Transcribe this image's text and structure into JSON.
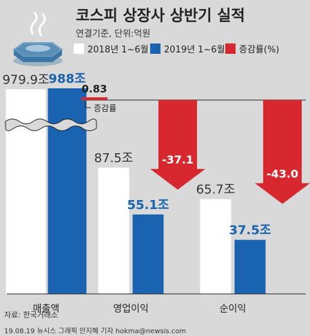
{
  "header": {
    "title": "코스피 상장사 상반기 실적",
    "subtitle": "연결기준, 단위:억원"
  },
  "legend": {
    "items": [
      {
        "label": "2018년 1~6월",
        "color": "#ffffff"
      },
      {
        "label": "2019년 1~6월",
        "color": "#1a63b0"
      },
      {
        "label": "증감률(%)",
        "color": "#d7282f"
      }
    ]
  },
  "colors": {
    "background": "#d9d9d9",
    "bar_2018": "#ffffff",
    "bar_2019": "#1a63b0",
    "change": "#d7282f",
    "label_2019": "#1a63b0",
    "label_change": "#ffffff"
  },
  "chart_data": {
    "type": "bar",
    "categories": [
      "매출액",
      "영업이익",
      "순이익"
    ],
    "series": [
      {
        "name": "2018년 1~6월",
        "values": [
          979.9,
          87.5,
          65.7
        ],
        "labels": [
          "979.9조",
          "87.5조",
          "65.7조"
        ]
      },
      {
        "name": "2019년 1~6월",
        "values": [
          988,
          55.1,
          37.5
        ],
        "labels": [
          "988조",
          "55.1조",
          "37.5조"
        ]
      },
      {
        "name": "증감률(%)",
        "values": [
          0.83,
          -37.1,
          -43.0
        ],
        "labels": [
          "0.83",
          "-37.1",
          "-43.0"
        ]
      }
    ],
    "annotations": [
      "증감률"
    ],
    "axis_break_on": "매출액"
  },
  "footer": {
    "source": "자료: 한국거래소",
    "credit": "19.08.19  뉴시스 그래픽  안지혜 기자  hokma@newsis.com"
  }
}
